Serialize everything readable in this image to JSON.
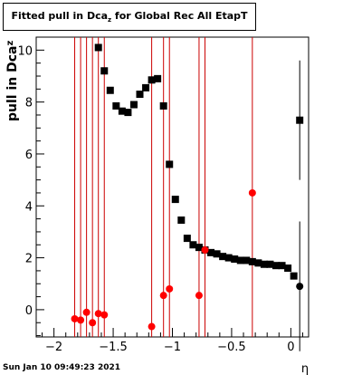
{
  "title": {
    "main": "Fitted pull in Dca",
    "sub": "z",
    "rest": " for Global Rec All EtapT"
  },
  "footer": {
    "timestamp": "Sun Jan 10 09:49:23 2021"
  },
  "chart_data": {
    "type": "scatter",
    "title": "Fitted pull in Dcaz for Global Rec All EtapT",
    "xlabel": "η",
    "ylabel": "pull in Dcaz",
    "xlim": [
      -2.15,
      0.15
    ],
    "ylim": [
      -1.05,
      10.5
    ],
    "xticks": [
      -2,
      -1.5,
      -1,
      -0.5,
      0
    ],
    "xtick_labels": [
      "−2",
      "−1.5",
      "−1",
      "−0.5",
      "0"
    ],
    "yticks": [
      0,
      2,
      4,
      6,
      8,
      10
    ],
    "ytick_labels": [
      "0",
      "2",
      "4",
      "6",
      "8",
      "10"
    ],
    "grid": false,
    "series": [
      {
        "marker": "square",
        "color": "#000000",
        "points": [
          [
            -1.625,
            10.1
          ],
          [
            -1.575,
            9.2
          ],
          [
            -1.525,
            8.45
          ],
          [
            -1.475,
            7.85
          ],
          [
            -1.425,
            7.65
          ],
          [
            -1.375,
            7.6
          ],
          [
            -1.325,
            7.9
          ],
          [
            -1.275,
            8.3
          ],
          [
            -1.225,
            8.55
          ],
          [
            -1.175,
            8.85
          ],
          [
            -1.125,
            8.9
          ],
          [
            -1.075,
            7.85
          ],
          [
            -1.025,
            5.6
          ],
          [
            -0.975,
            4.25
          ],
          [
            -0.925,
            3.45
          ],
          [
            -0.875,
            2.75
          ],
          [
            -0.825,
            2.5
          ],
          [
            -0.775,
            2.4
          ],
          [
            -0.725,
            2.3
          ],
          [
            -0.675,
            2.2
          ],
          [
            -0.625,
            2.15
          ],
          [
            -0.575,
            2.05
          ],
          [
            -0.525,
            2.0
          ],
          [
            -0.475,
            1.95
          ],
          [
            -0.425,
            1.9
          ],
          [
            -0.375,
            1.9
          ],
          [
            -0.325,
            1.85
          ],
          [
            -0.275,
            1.8
          ],
          [
            -0.225,
            1.75
          ],
          [
            -0.175,
            1.75
          ],
          [
            -0.125,
            1.7
          ],
          [
            -0.075,
            1.7
          ],
          [
            -0.025,
            1.6
          ],
          [
            0.025,
            1.3
          ]
        ]
      },
      {
        "marker": "square",
        "color": "#000000",
        "points": [
          [
            0.075,
            7.3
          ]
        ],
        "errors": [
          2.3
        ]
      },
      {
        "marker": "circle",
        "color": "#000000",
        "points": [
          [
            0.075,
            0.9
          ]
        ],
        "errors": [
          2.5
        ]
      },
      {
        "marker": "circle",
        "color": "#ff0000",
        "points": [
          [
            -1.825,
            -0.35
          ],
          [
            -1.775,
            -0.4
          ],
          [
            -1.725,
            -0.1
          ],
          [
            -1.675,
            -0.5
          ],
          [
            -1.625,
            -0.15
          ],
          [
            -1.575,
            -0.2
          ],
          [
            -1.175,
            -0.65
          ],
          [
            -1.075,
            0.55
          ],
          [
            -1.025,
            0.8
          ],
          [
            -0.775,
            0.55
          ],
          [
            -0.725,
            2.3
          ],
          [
            -0.325,
            4.5
          ]
        ]
      }
    ],
    "vlines": {
      "color": "#cc0000",
      "x": [
        -1.825,
        -1.775,
        -1.725,
        -1.675,
        -1.625,
        -1.575,
        -1.175,
        -1.075,
        -1.025,
        -0.775,
        -0.725,
        -0.325
      ]
    }
  }
}
